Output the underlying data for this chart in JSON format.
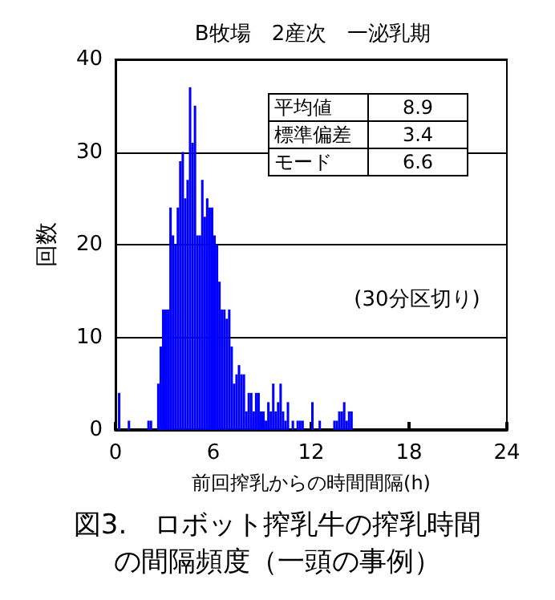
{
  "chart_data": {
    "type": "histogram",
    "title": "B牧場　2産次　一泌乳期",
    "xlabel": "前回搾乳からの時間間隔(h)",
    "ylabel": "回数",
    "bins": [
      0,
      0.15,
      0.3,
      0.45,
      0.6,
      0.75,
      0.9,
      1.05,
      1.2,
      1.35,
      1.5,
      1.65,
      1.8,
      1.95,
      2.1,
      2.25,
      2.4,
      2.55,
      2.7,
      2.85,
      3,
      3.15,
      3.3,
      3.45,
      3.6,
      3.75,
      3.9,
      4.05,
      4.2,
      4.35,
      4.5,
      4.65,
      4.8,
      4.95,
      5.1,
      5.25,
      5.4,
      5.55,
      5.7,
      5.85,
      6,
      6.15,
      6.3,
      6.45,
      6.6,
      6.75,
      6.9,
      7.05,
      7.2,
      7.35,
      7.5,
      7.65,
      7.8,
      7.95,
      8.1,
      8.25,
      8.4,
      8.55,
      8.7,
      8.85,
      9,
      9.15,
      9.3,
      9.45,
      9.6,
      9.75,
      9.9,
      10.05,
      10.2,
      10.35,
      10.5,
      10.65,
      10.8,
      10.95,
      11.1,
      11.25,
      11.4,
      11.55,
      11.7,
      11.85,
      12,
      12.15,
      12.3,
      12.45,
      12.6,
      12.75,
      12.9,
      13.05,
      13.2,
      13.35,
      13.5,
      13.65,
      13.8,
      13.95,
      14.1,
      14.25,
      14.4,
      14.55
    ],
    "values": [
      0,
      4,
      0,
      0,
      0,
      1,
      0,
      0,
      0,
      0,
      0,
      0,
      0,
      1,
      1,
      0,
      0,
      5,
      9,
      13,
      13,
      13,
      24,
      21,
      20,
      24,
      29,
      30,
      25,
      27,
      37,
      31,
      35,
      21,
      21,
      27,
      23,
      25,
      24,
      24,
      21,
      20,
      16,
      13,
      13,
      12,
      13,
      9,
      5,
      6,
      7,
      6,
      6,
      2,
      4,
      4,
      2,
      4,
      4,
      2,
      2,
      1,
      3,
      2,
      5,
      2,
      3,
      5,
      2,
      1,
      3,
      0,
      1,
      0,
      1,
      1,
      1,
      0,
      0,
      0,
      3,
      0,
      0,
      1,
      0,
      0,
      0,
      0,
      0,
      1,
      1,
      2,
      2,
      3,
      1,
      2,
      2
    ],
    "color": "#0000ff",
    "xlim": [
      0,
      24
    ],
    "xticks": [
      0,
      6,
      12,
      18,
      24
    ],
    "ylim": [
      0,
      40
    ],
    "yticks": [
      0,
      10,
      20,
      30,
      40
    ],
    "grid": "y",
    "annotations": [
      "平均値",
      "8.9",
      "標準偏差",
      "3.4",
      "モード",
      "6.6",
      "(30分区切り)",
      "図3.　ロボット搾乳牛の搾乳時間の間隔頻度（一頭の事例）"
    ]
  }
}
